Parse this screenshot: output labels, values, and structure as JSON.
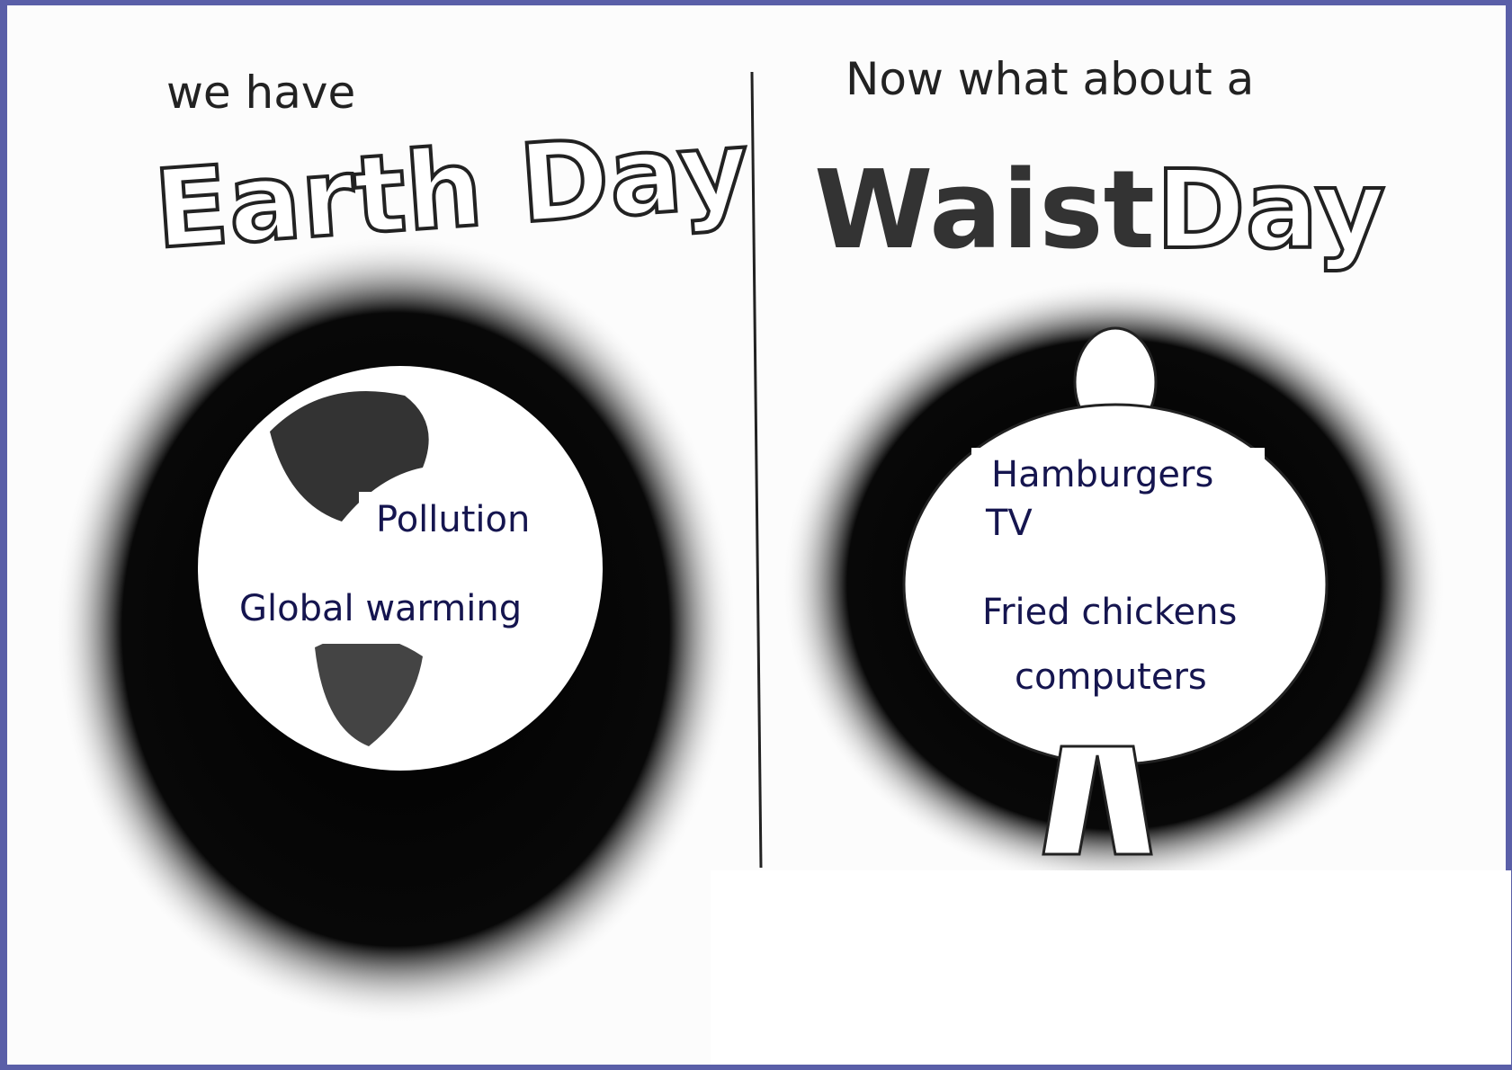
{
  "left_panel": {
    "caption": "we have",
    "title": "Earth Day",
    "labels": [
      "Pollution",
      "Global warming"
    ]
  },
  "right_panel": {
    "caption": "Now what about a",
    "title_words": [
      "Waist",
      "Day"
    ],
    "labels": [
      "Hamburgers",
      "TV",
      "Fried chickens",
      "computers"
    ]
  }
}
